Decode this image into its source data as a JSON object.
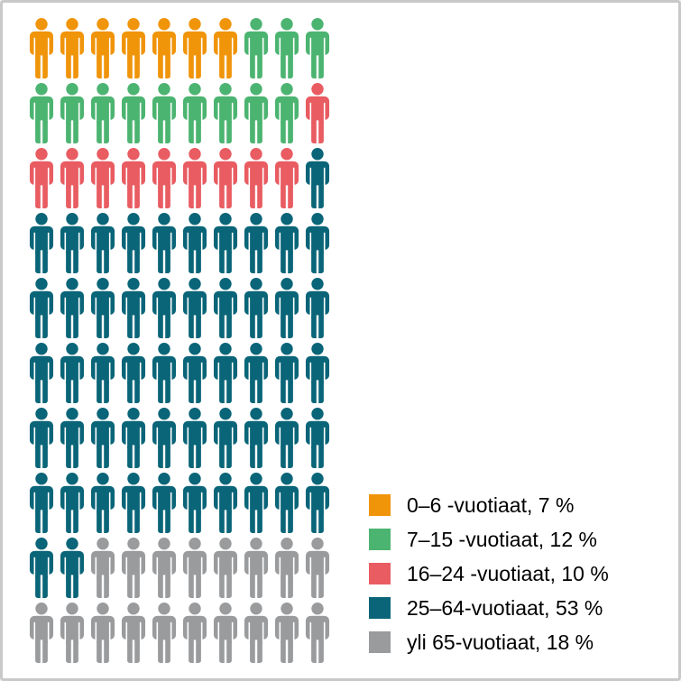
{
  "frame": {
    "background": "#ffffff",
    "border_color": "#c9c9c9"
  },
  "chart_data": {
    "type": "pictogram",
    "subtype": "waffle-of-person-icons",
    "title": "",
    "unit": "1 person icon = 1 %",
    "grid": {
      "rows": 10,
      "cols": 10,
      "fill_order": "row-major, left-to-right, top-to-bottom"
    },
    "categories": [
      "0–6 -vuotiaat",
      "7–15 -vuotiaat",
      "16–24 -vuotiaat",
      "25–64-vuotiaat",
      "yli 65-vuotiaat"
    ],
    "values": [
      7,
      12,
      10,
      53,
      18
    ],
    "series": [
      {
        "label": "0–6 -vuotiaat",
        "percent": 7,
        "color": "#F0940A",
        "legend_text": "0–6 -vuotiaat, 7 %"
      },
      {
        "label": "7–15 -vuotiaat",
        "percent": 12,
        "color": "#4CB471",
        "legend_text": "7–15 -vuotiaat, 12 %"
      },
      {
        "label": "16–24 -vuotiaat",
        "percent": 10,
        "color": "#E85C62",
        "legend_text": "16–24 -vuotiaat, 10 %"
      },
      {
        "label": "25–64-vuotiaat",
        "percent": 53,
        "color": "#0A6578",
        "legend_text": "25–64-vuotiaat, 53 %"
      },
      {
        "label": "yli 65-vuotiaat",
        "percent": 18,
        "color": "#9A9B9D",
        "legend_text": "yli 65-vuotiaat, 18 %"
      }
    ],
    "legend_position": "right-bottom",
    "icon": "person-icon",
    "background": "#ffffff"
  }
}
